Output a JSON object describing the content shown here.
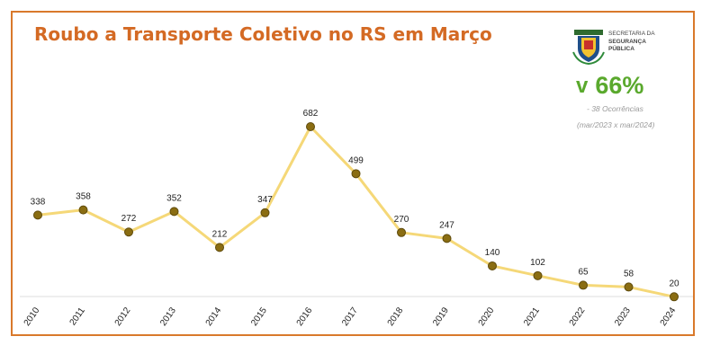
{
  "header": {
    "title": "Roubo a Transporte Coletivo no RS em Março"
  },
  "logo": {
    "line1": "SECRETARIA DA",
    "line2": "SEGURANÇA",
    "line3": "PÚBLICA",
    "icon": "rs-coat-of-arms-icon"
  },
  "kpi": {
    "arrow": "v",
    "value": "66%",
    "sub1": "- 38 Ocorrências",
    "sub2": "(mar/2023 x mar/2024)",
    "color": "#5aa92d"
  },
  "colors": {
    "accent": "#d46a24",
    "line": "#f5d878",
    "marker_fill": "#8a6d12",
    "marker_stroke": "#5e4a0c"
  },
  "chart_data": {
    "type": "line",
    "title": "Roubo a Transporte Coletivo no RS em Março",
    "xlabel": "",
    "ylabel": "",
    "categories": [
      "2010",
      "2011",
      "2012",
      "2013",
      "2014",
      "2015",
      "2016",
      "2017",
      "2018",
      "2019",
      "2020",
      "2021",
      "2022",
      "2023",
      "2024"
    ],
    "series": [
      {
        "values": [
          338,
          358,
          272,
          352,
          212,
          347,
          682,
          499,
          270,
          247,
          140,
          102,
          65,
          58,
          20
        ]
      }
    ],
    "data_labels": true,
    "grid": false,
    "legend": "none"
  }
}
